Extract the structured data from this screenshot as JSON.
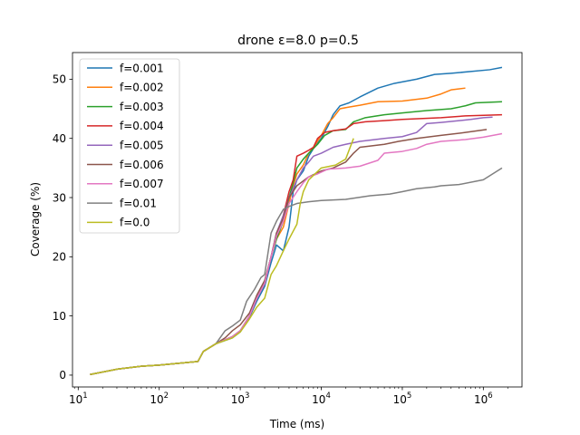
{
  "chart_data": {
    "type": "line",
    "title": "drone ε=8.0 p=0.5",
    "xlabel": "Time (ms)",
    "ylabel": "Coverage (%)",
    "xscale": "log",
    "xlim": [
      8.5,
      3000000
    ],
    "ylim": [
      -2,
      54.5
    ],
    "x_ticks": [
      {
        "value": 10,
        "base": "10",
        "exp": "1"
      },
      {
        "value": 100,
        "base": "10",
        "exp": "2"
      },
      {
        "value": 1000,
        "base": "10",
        "exp": "3"
      },
      {
        "value": 10000,
        "base": "10",
        "exp": "4"
      },
      {
        "value": 100000,
        "base": "10",
        "exp": "5"
      },
      {
        "value": 1000000,
        "base": "10",
        "exp": "6"
      }
    ],
    "y_ticks": [
      0,
      10,
      20,
      30,
      40,
      50
    ],
    "grid": false,
    "legend_position": "top-left",
    "series": [
      {
        "name": "f=0.001",
        "color": "#1f77b4",
        "points": [
          [
            14,
            0.1
          ],
          [
            30,
            1.0
          ],
          [
            60,
            1.5
          ],
          [
            100,
            1.7
          ],
          [
            300,
            2.3
          ],
          [
            350,
            4.0
          ],
          [
            500,
            5.3
          ],
          [
            800,
            6.3
          ],
          [
            1000,
            7.3
          ],
          [
            1300,
            9.8
          ],
          [
            1600,
            12.5
          ],
          [
            2000,
            15.0
          ],
          [
            2400,
            19.0
          ],
          [
            2800,
            22.0
          ],
          [
            3400,
            21.0
          ],
          [
            4000,
            25.0
          ],
          [
            4500,
            31.0
          ],
          [
            5000,
            33.0
          ],
          [
            6000,
            34.5
          ],
          [
            7000,
            37.0
          ],
          [
            8000,
            38.3
          ],
          [
            10000,
            40.0
          ],
          [
            12000,
            42.0
          ],
          [
            14000,
            44.0
          ],
          [
            17000,
            45.5
          ],
          [
            22000,
            46.0
          ],
          [
            30000,
            47.0
          ],
          [
            50000,
            48.5
          ],
          [
            80000,
            49.3
          ],
          [
            150000,
            50.0
          ],
          [
            250000,
            50.8
          ],
          [
            400000,
            51.0
          ],
          [
            700000,
            51.3
          ],
          [
            1200000,
            51.6
          ],
          [
            1700000,
            52.0
          ]
        ]
      },
      {
        "name": "f=0.002",
        "color": "#ff7f0e",
        "points": [
          [
            14,
            0.1
          ],
          [
            30,
            1.0
          ],
          [
            60,
            1.5
          ],
          [
            100,
            1.7
          ],
          [
            300,
            2.3
          ],
          [
            350,
            4.0
          ],
          [
            500,
            5.3
          ],
          [
            800,
            6.5
          ],
          [
            1000,
            7.5
          ],
          [
            1300,
            10.0
          ],
          [
            1600,
            13.0
          ],
          [
            2000,
            15.5
          ],
          [
            2400,
            20.0
          ],
          [
            2800,
            23.0
          ],
          [
            3400,
            25.0
          ],
          [
            4000,
            29.0
          ],
          [
            4500,
            32.0
          ],
          [
            5000,
            34.0
          ],
          [
            6000,
            35.5
          ],
          [
            7000,
            37.5
          ],
          [
            8000,
            38.5
          ],
          [
            10000,
            40.5
          ],
          [
            12000,
            42.5
          ],
          [
            14000,
            43.5
          ],
          [
            17000,
            45.0
          ],
          [
            22000,
            45.3
          ],
          [
            30000,
            45.6
          ],
          [
            50000,
            46.2
          ],
          [
            100000,
            46.3
          ],
          [
            200000,
            46.8
          ],
          [
            300000,
            47.5
          ],
          [
            400000,
            48.2
          ],
          [
            600000,
            48.5
          ]
        ]
      },
      {
        "name": "f=0.003",
        "color": "#2ca02c",
        "points": [
          [
            14,
            0.1
          ],
          [
            30,
            1.0
          ],
          [
            60,
            1.5
          ],
          [
            100,
            1.7
          ],
          [
            300,
            2.3
          ],
          [
            350,
            4.0
          ],
          [
            500,
            5.3
          ],
          [
            800,
            6.5
          ],
          [
            1000,
            7.5
          ],
          [
            1300,
            10.0
          ],
          [
            1600,
            13.0
          ],
          [
            2000,
            15.5
          ],
          [
            2400,
            20.0
          ],
          [
            2800,
            23.0
          ],
          [
            3400,
            26.0
          ],
          [
            4000,
            30.0
          ],
          [
            4500,
            32.5
          ],
          [
            5000,
            35.0
          ],
          [
            6000,
            36.5
          ],
          [
            7000,
            37.5
          ],
          [
            9000,
            39.0
          ],
          [
            11000,
            40.5
          ],
          [
            14000,
            41.3
          ],
          [
            20000,
            41.5
          ],
          [
            25000,
            42.8
          ],
          [
            35000,
            43.5
          ],
          [
            60000,
            44.0
          ],
          [
            100000,
            44.3
          ],
          [
            200000,
            44.7
          ],
          [
            400000,
            45.0
          ],
          [
            600000,
            45.5
          ],
          [
            800000,
            46.0
          ],
          [
            1700000,
            46.2
          ]
        ]
      },
      {
        "name": "f=0.004",
        "color": "#d62728",
        "points": [
          [
            14,
            0.1
          ],
          [
            30,
            1.0
          ],
          [
            60,
            1.5
          ],
          [
            100,
            1.7
          ],
          [
            300,
            2.3
          ],
          [
            350,
            4.0
          ],
          [
            500,
            5.3
          ],
          [
            800,
            6.5
          ],
          [
            1000,
            7.5
          ],
          [
            1300,
            10.0
          ],
          [
            1600,
            13.0
          ],
          [
            2000,
            15.5
          ],
          [
            2400,
            20.0
          ],
          [
            2800,
            23.5
          ],
          [
            3400,
            27.0
          ],
          [
            4000,
            31.0
          ],
          [
            4500,
            33.0
          ],
          [
            5000,
            37.0
          ],
          [
            6000,
            37.5
          ],
          [
            7000,
            38.0
          ],
          [
            8000,
            38.5
          ],
          [
            9000,
            40.0
          ],
          [
            11000,
            41.0
          ],
          [
            14000,
            41.3
          ],
          [
            20000,
            41.6
          ],
          [
            25000,
            42.5
          ],
          [
            35000,
            42.8
          ],
          [
            60000,
            43.0
          ],
          [
            100000,
            43.2
          ],
          [
            300000,
            43.5
          ],
          [
            600000,
            43.8
          ],
          [
            1700000,
            44.0
          ]
        ]
      },
      {
        "name": "f=0.005",
        "color": "#9467bd",
        "points": [
          [
            14,
            0.1
          ],
          [
            30,
            1.0
          ],
          [
            60,
            1.5
          ],
          [
            100,
            1.7
          ],
          [
            300,
            2.3
          ],
          [
            350,
            4.0
          ],
          [
            500,
            5.3
          ],
          [
            800,
            6.5
          ],
          [
            1000,
            7.5
          ],
          [
            1300,
            10.0
          ],
          [
            1600,
            13.0
          ],
          [
            2000,
            15.5
          ],
          [
            2400,
            20.0
          ],
          [
            2800,
            24.0
          ],
          [
            3400,
            27.0
          ],
          [
            4000,
            30.0
          ],
          [
            4500,
            31.5
          ],
          [
            5000,
            33.0
          ],
          [
            6000,
            35.0
          ],
          [
            7000,
            36.0
          ],
          [
            8000,
            37.0
          ],
          [
            10000,
            37.5
          ],
          [
            14000,
            38.5
          ],
          [
            20000,
            39.0
          ],
          [
            30000,
            39.5
          ],
          [
            60000,
            40.0
          ],
          [
            100000,
            40.3
          ],
          [
            150000,
            41.0
          ],
          [
            200000,
            42.5
          ],
          [
            300000,
            42.7
          ],
          [
            500000,
            43.0
          ],
          [
            700000,
            43.2
          ],
          [
            1000000,
            43.5
          ],
          [
            1300000,
            43.6
          ]
        ]
      },
      {
        "name": "f=0.006",
        "color": "#8c564b",
        "points": [
          [
            14,
            0.1
          ],
          [
            30,
            1.0
          ],
          [
            60,
            1.5
          ],
          [
            100,
            1.7
          ],
          [
            300,
            2.3
          ],
          [
            350,
            4.0
          ],
          [
            500,
            5.3
          ],
          [
            650,
            6.3
          ],
          [
            800,
            7.5
          ],
          [
            1000,
            8.5
          ],
          [
            1300,
            10.5
          ],
          [
            1600,
            13.5
          ],
          [
            2000,
            16.0
          ],
          [
            2400,
            20.0
          ],
          [
            2800,
            24.0
          ],
          [
            3400,
            26.5
          ],
          [
            4000,
            30.0
          ],
          [
            5000,
            32.0
          ],
          [
            7000,
            33.5
          ],
          [
            10000,
            34.5
          ],
          [
            14000,
            35.0
          ],
          [
            20000,
            36.0
          ],
          [
            25000,
            37.5
          ],
          [
            30000,
            38.5
          ],
          [
            60000,
            39.0
          ],
          [
            90000,
            39.5
          ],
          [
            150000,
            40.0
          ],
          [
            300000,
            40.5
          ],
          [
            600000,
            41.0
          ],
          [
            1100000,
            41.5
          ]
        ]
      },
      {
        "name": "f=0.007",
        "color": "#e377c2",
        "points": [
          [
            14,
            0.1
          ],
          [
            30,
            1.0
          ],
          [
            60,
            1.5
          ],
          [
            100,
            1.7
          ],
          [
            300,
            2.3
          ],
          [
            350,
            4.0
          ],
          [
            500,
            5.3
          ],
          [
            800,
            6.5
          ],
          [
            1000,
            7.5
          ],
          [
            1300,
            10.0
          ],
          [
            1600,
            13.0
          ],
          [
            2000,
            15.5
          ],
          [
            2400,
            20.0
          ],
          [
            2800,
            23.5
          ],
          [
            3400,
            26.0
          ],
          [
            4000,
            29.0
          ],
          [
            5000,
            31.0
          ],
          [
            6000,
            32.5
          ],
          [
            7000,
            33.5
          ],
          [
            9000,
            34.0
          ],
          [
            12000,
            34.8
          ],
          [
            20000,
            35.0
          ],
          [
            30000,
            35.3
          ],
          [
            50000,
            36.3
          ],
          [
            60000,
            37.5
          ],
          [
            100000,
            37.8
          ],
          [
            150000,
            38.3
          ],
          [
            200000,
            39.0
          ],
          [
            300000,
            39.5
          ],
          [
            600000,
            39.8
          ],
          [
            1000000,
            40.2
          ],
          [
            1700000,
            40.8
          ]
        ]
      },
      {
        "name": "f=0.01",
        "color": "#7f7f7f",
        "points": [
          [
            14,
            0.1
          ],
          [
            30,
            1.0
          ],
          [
            60,
            1.5
          ],
          [
            100,
            1.7
          ],
          [
            300,
            2.3
          ],
          [
            350,
            4.0
          ],
          [
            500,
            5.3
          ],
          [
            650,
            7.5
          ],
          [
            800,
            8.3
          ],
          [
            1000,
            9.3
          ],
          [
            1200,
            12.5
          ],
          [
            1500,
            14.5
          ],
          [
            1800,
            16.5
          ],
          [
            2000,
            17.0
          ],
          [
            2400,
            24.0
          ],
          [
            2800,
            26.0
          ],
          [
            3400,
            28.0
          ],
          [
            4000,
            28.5
          ],
          [
            5000,
            29.0
          ],
          [
            7000,
            29.3
          ],
          [
            10000,
            29.5
          ],
          [
            20000,
            29.7
          ],
          [
            40000,
            30.3
          ],
          [
            70000,
            30.6
          ],
          [
            100000,
            31.0
          ],
          [
            150000,
            31.5
          ],
          [
            250000,
            31.8
          ],
          [
            300000,
            32.0
          ],
          [
            500000,
            32.2
          ],
          [
            1000000,
            33.0
          ],
          [
            1700000,
            35.0
          ]
        ]
      },
      {
        "name": "f=0.0",
        "color": "#bcbd22",
        "points": [
          [
            14,
            0.1
          ],
          [
            30,
            1.0
          ],
          [
            60,
            1.5
          ],
          [
            100,
            1.7
          ],
          [
            300,
            2.3
          ],
          [
            350,
            4.0
          ],
          [
            500,
            5.3
          ],
          [
            800,
            6.3
          ],
          [
            1000,
            7.3
          ],
          [
            1300,
            9.5
          ],
          [
            1600,
            11.5
          ],
          [
            2000,
            13.0
          ],
          [
            2400,
            17.0
          ],
          [
            2800,
            18.5
          ],
          [
            3400,
            21.0
          ],
          [
            4000,
            23.0
          ],
          [
            5000,
            25.5
          ],
          [
            5500,
            29.0
          ],
          [
            6000,
            31.0
          ],
          [
            7000,
            33.0
          ],
          [
            10000,
            35.0
          ],
          [
            15000,
            35.5
          ],
          [
            20000,
            36.5
          ],
          [
            25000,
            40.0
          ]
        ]
      }
    ]
  }
}
